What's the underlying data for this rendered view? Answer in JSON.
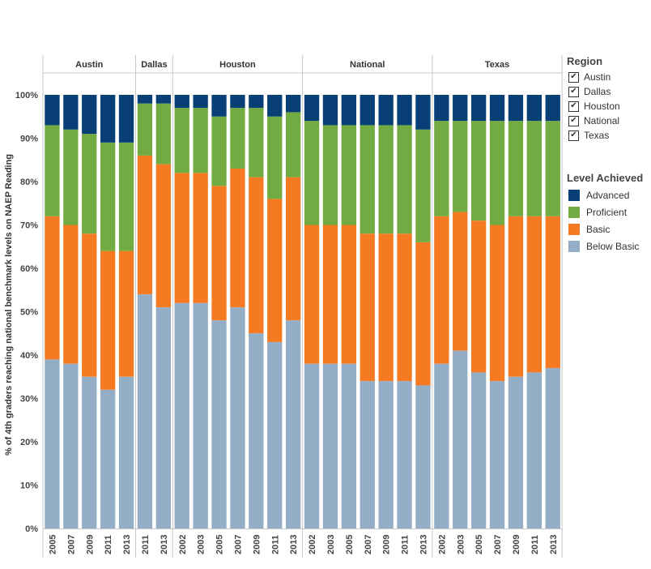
{
  "chart_data": {
    "type": "bar",
    "stacked": true,
    "ylabel": "% of 4th graders reaching national benchmark levels on NAEP Reading",
    "ylim": [
      0,
      100
    ],
    "y_ticks": [
      "0%",
      "10%",
      "20%",
      "30%",
      "40%",
      "50%",
      "60%",
      "70%",
      "80%",
      "90%",
      "100%"
    ],
    "panels": [
      {
        "region": "Austin",
        "years": [
          "2005",
          "2007",
          "2009",
          "2011",
          "2013"
        ],
        "below_basic": [
          39,
          38,
          35,
          32,
          35
        ],
        "basic": [
          33,
          32,
          33,
          32,
          29
        ],
        "proficient": [
          21,
          22,
          23,
          25,
          25
        ],
        "advanced": [
          7,
          8,
          9,
          11,
          11
        ]
      },
      {
        "region": "Dallas",
        "years": [
          "2011",
          "2013"
        ],
        "below_basic": [
          54,
          51
        ],
        "basic": [
          32,
          33
        ],
        "proficient": [
          12,
          14
        ],
        "advanced": [
          2,
          2
        ]
      },
      {
        "region": "Houston",
        "years": [
          "2002",
          "2003",
          "2005",
          "2007",
          "2009",
          "2011",
          "2013"
        ],
        "below_basic": [
          52,
          52,
          48,
          51,
          45,
          43,
          48
        ],
        "basic": [
          30,
          30,
          31,
          32,
          36,
          33,
          33
        ],
        "proficient": [
          15,
          15,
          16,
          14,
          16,
          19,
          15
        ],
        "advanced": [
          3,
          3,
          5,
          3,
          3,
          5,
          4
        ]
      },
      {
        "region": "National",
        "years": [
          "2002",
          "2003",
          "2005",
          "2007",
          "2009",
          "2011",
          "2013"
        ],
        "below_basic": [
          38,
          38,
          38,
          34,
          34,
          34,
          33
        ],
        "basic": [
          32,
          32,
          32,
          34,
          34,
          34,
          33
        ],
        "proficient": [
          24,
          23,
          23,
          25,
          25,
          25,
          26
        ],
        "advanced": [
          6,
          7,
          7,
          7,
          7,
          7,
          8
        ]
      },
      {
        "region": "Texas",
        "years": [
          "2002",
          "2003",
          "2005",
          "2007",
          "2009",
          "2011",
          "2013"
        ],
        "below_basic": [
          38,
          41,
          36,
          34,
          35,
          36,
          37
        ],
        "basic": [
          34,
          32,
          35,
          36,
          37,
          36,
          35
        ],
        "proficient": [
          22,
          21,
          23,
          24,
          22,
          22,
          22
        ],
        "advanced": [
          6,
          6,
          6,
          6,
          6,
          6,
          6
        ]
      }
    ],
    "levels": [
      {
        "key": "below_basic",
        "name": "Below Basic",
        "color": "#93aec6"
      },
      {
        "key": "basic",
        "name": "Basic",
        "color": "#f57a22"
      },
      {
        "key": "proficient",
        "name": "Proficient",
        "color": "#73ab43"
      },
      {
        "key": "advanced",
        "name": "Advanced",
        "color": "#073f76"
      }
    ],
    "legend_placement": "right",
    "grid": false
  },
  "legend": {
    "region_title": "Region",
    "regions": [
      "Austin",
      "Dallas",
      "Houston",
      "National",
      "Texas"
    ],
    "check_mark": "✔",
    "level_title": "Level Achieved",
    "levels_display": [
      {
        "name": "Advanced",
        "color": "#073f76"
      },
      {
        "name": "Proficient",
        "color": "#73ab43"
      },
      {
        "name": "Basic",
        "color": "#f57a22"
      },
      {
        "name": "Below Basic",
        "color": "#93aec6"
      }
    ]
  }
}
